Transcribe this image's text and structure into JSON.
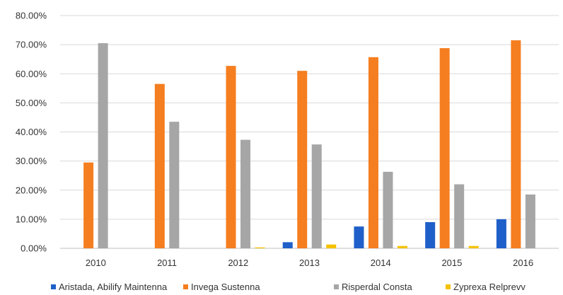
{
  "chart_data": {
    "type": "bar",
    "title": "",
    "xlabel": "",
    "ylabel": "",
    "categories": [
      "2010",
      "2011",
      "2012",
      "2013",
      "2014",
      "2015",
      "2016"
    ],
    "series": [
      {
        "name": "Aristada, Abilify Maintenna",
        "color": "#1f5fc9",
        "values": [
          0,
          0,
          0,
          2.1,
          7.5,
          9.0,
          10.0
        ]
      },
      {
        "name": "Invega Sustenna",
        "color": "#f57e20",
        "values": [
          29.5,
          56.5,
          62.7,
          61.0,
          65.7,
          68.8,
          71.5
        ]
      },
      {
        "name": "Risperdal Consta",
        "color": "#a6a6a6",
        "values": [
          70.5,
          43.5,
          37.3,
          35.7,
          26.3,
          22.0,
          18.5
        ]
      },
      {
        "name": "Zyprexa Relprevv",
        "color": "#f5c200",
        "values": [
          0,
          0,
          0.3,
          1.3,
          0.8,
          0.8,
          0
        ]
      }
    ],
    "ylim": [
      0,
      80
    ],
    "yticks": [
      "0.00%",
      "10.00%",
      "20.00%",
      "30.00%",
      "40.00%",
      "50.00%",
      "60.00%",
      "70.00%",
      "80.00%"
    ],
    "grid": true,
    "legend_position": "bottom"
  }
}
